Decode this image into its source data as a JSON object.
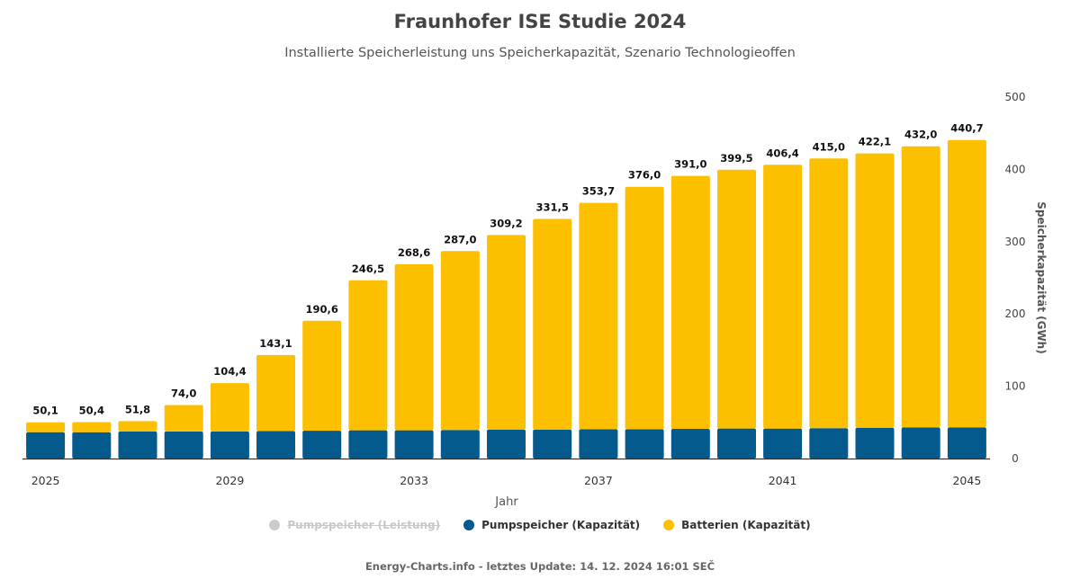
{
  "header": {
    "title": "Fraunhofer ISE Studie 2024",
    "subtitle": "Installierte Speicherleistung uns Speicherkapazität, Szenario Technologieoffen"
  },
  "legend": {
    "items": [
      {
        "label": "Pumpspeicher (Leistung)",
        "color": "#cccccc",
        "disabled": true
      },
      {
        "label": "Pumpspeicher (Kapazität)",
        "color": "#045a8d",
        "disabled": false
      },
      {
        "label": "Batterien (Kapazität)",
        "color": "#fcc000",
        "disabled": false
      }
    ]
  },
  "footer": {
    "text": "Energy-Charts.info - letztes Update: 14. 12. 2024 16:01 SEČ"
  },
  "chart_data": {
    "type": "bar",
    "stacked": true,
    "xlabel": "Jahr",
    "ylabel": "Speicherkapazität (GWh)",
    "ylim": [
      0,
      500
    ],
    "yticks": [
      0,
      100,
      200,
      300,
      400,
      500
    ],
    "y_axis_position": "right",
    "xtick_labels": [
      "2025",
      "2029",
      "2033",
      "2037",
      "2041",
      "2045"
    ],
    "categories": [
      "2025",
      "2026",
      "2027",
      "2028",
      "2029",
      "2030",
      "2031",
      "2032",
      "2033",
      "2034",
      "2035",
      "2036",
      "2037",
      "2038",
      "2039",
      "2040",
      "2041",
      "2042",
      "2043",
      "2044",
      "2045"
    ],
    "series": [
      {
        "name": "Pumpspeicher (Kapazität)",
        "color": "#045a8d",
        "values": [
          36.5,
          36.5,
          37.5,
          37.5,
          37.5,
          38,
          38.5,
          39,
          39,
          39.5,
          40,
          40,
          40.5,
          40.5,
          41,
          41.5,
          41.5,
          42,
          42.5,
          43,
          43
        ]
      },
      {
        "name": "Batterien (Kapazität)",
        "color": "#fcc000",
        "values": [
          13.6,
          13.9,
          14.3,
          36.5,
          66.9,
          105.1,
          152.1,
          207.5,
          229.6,
          247.5,
          269.2,
          291.5,
          313.2,
          335.5,
          350,
          358,
          364.9,
          373,
          379.6,
          389,
          397.7
        ]
      }
    ],
    "totals": [
      "50,1",
      "50,4",
      "51,8",
      "74,0",
      "104,4",
      "143,1",
      "190,6",
      "246,5",
      "268,6",
      "287,0",
      "309,2",
      "331,5",
      "353,7",
      "376,0",
      "391,0",
      "399,5",
      "406,4",
      "415,0",
      "422,1",
      "432,0",
      "440,7"
    ]
  }
}
